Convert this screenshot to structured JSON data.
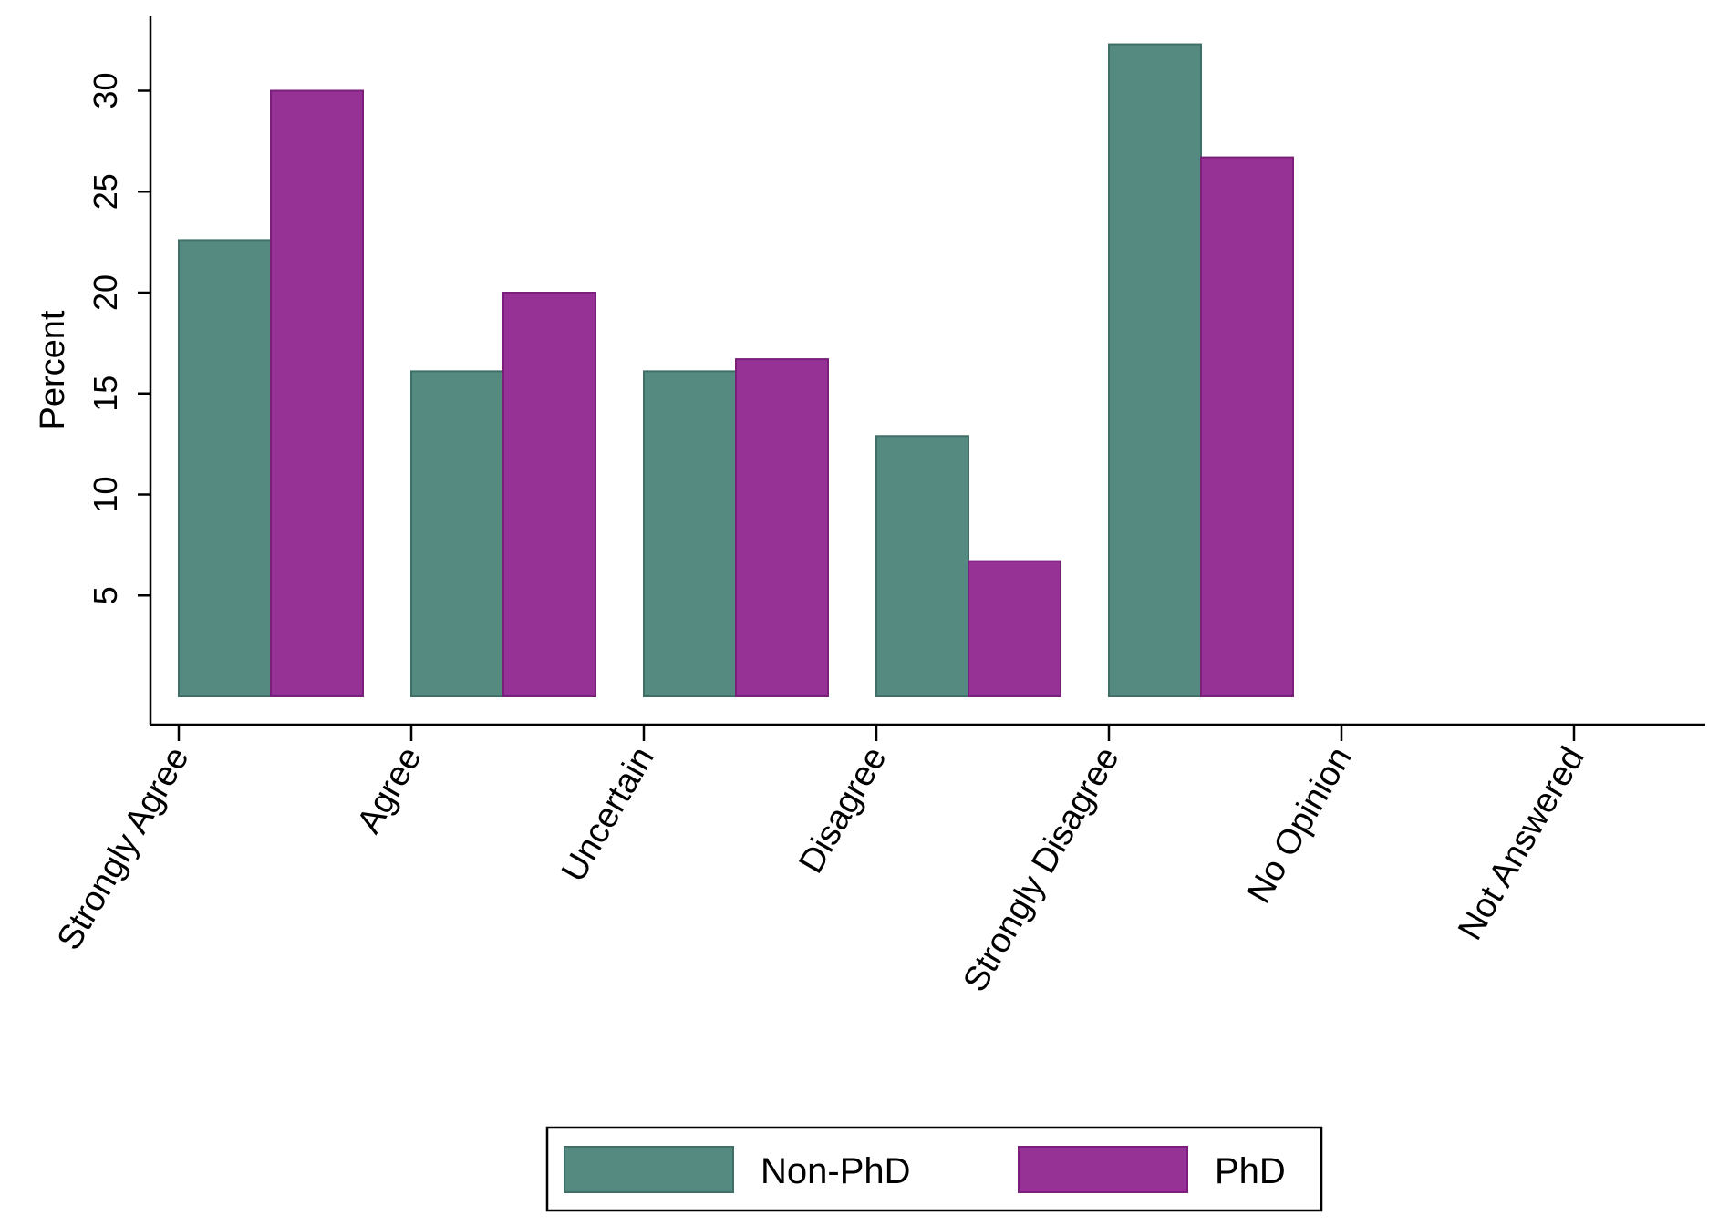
{
  "chart_data": {
    "type": "bar",
    "categories": [
      "Strongly Agree",
      "Agree",
      "Uncertain",
      "Disagree",
      "Strongly Disagree",
      "No Opinion",
      "Not Answered"
    ],
    "series": [
      {
        "name": "Non-PhD",
        "color": "#558a81",
        "values": [
          22.6,
          16.1,
          16.1,
          12.9,
          32.3,
          0,
          0
        ]
      },
      {
        "name": "PhD",
        "color": "#963296",
        "values": [
          30.0,
          20.0,
          16.7,
          6.7,
          26.7,
          0,
          0
        ]
      }
    ],
    "title": "",
    "xlabel": "",
    "ylabel": "Percent",
    "yticks": [
      5,
      10,
      15,
      20,
      25,
      30
    ],
    "ylim": [
      0,
      33.3
    ],
    "grid": false,
    "legend": "bottom",
    "colors": {
      "non_phd_edge": "#3f6f67",
      "phd_edge": "#7a1f7a"
    }
  }
}
